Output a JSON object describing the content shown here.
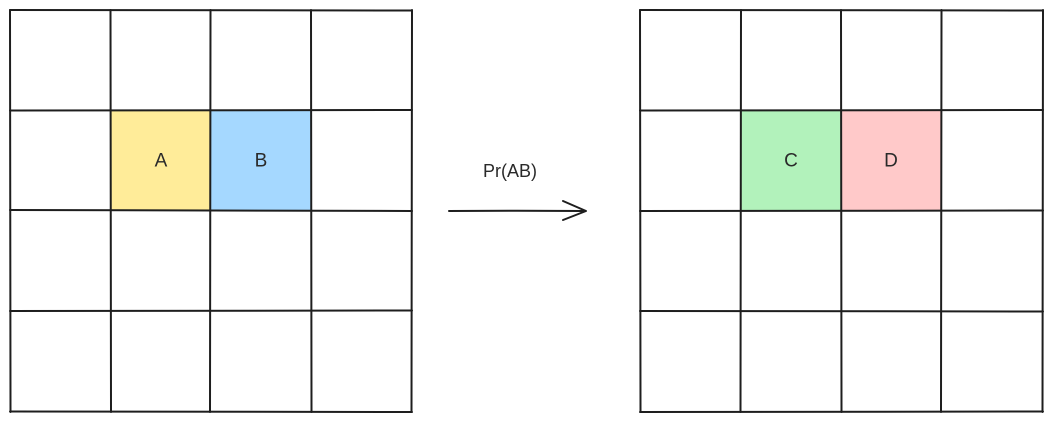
{
  "left_grid": {
    "rows": 4,
    "cols": 4,
    "highlights": [
      {
        "row": 1,
        "col": 1,
        "label": "A",
        "color": "#ffec99"
      },
      {
        "row": 1,
        "col": 2,
        "label": "B",
        "color": "#a5d8ff"
      }
    ]
  },
  "right_grid": {
    "rows": 4,
    "cols": 4,
    "highlights": [
      {
        "row": 1,
        "col": 1,
        "label": "C",
        "color": "#b2f2bb"
      },
      {
        "row": 1,
        "col": 2,
        "label": "D",
        "color": "#ffc9c9"
      }
    ]
  },
  "arrow": {
    "label": "Pr(AB)"
  },
  "colors": {
    "stroke": "#1e1e1e",
    "background": "#ffffff"
  }
}
